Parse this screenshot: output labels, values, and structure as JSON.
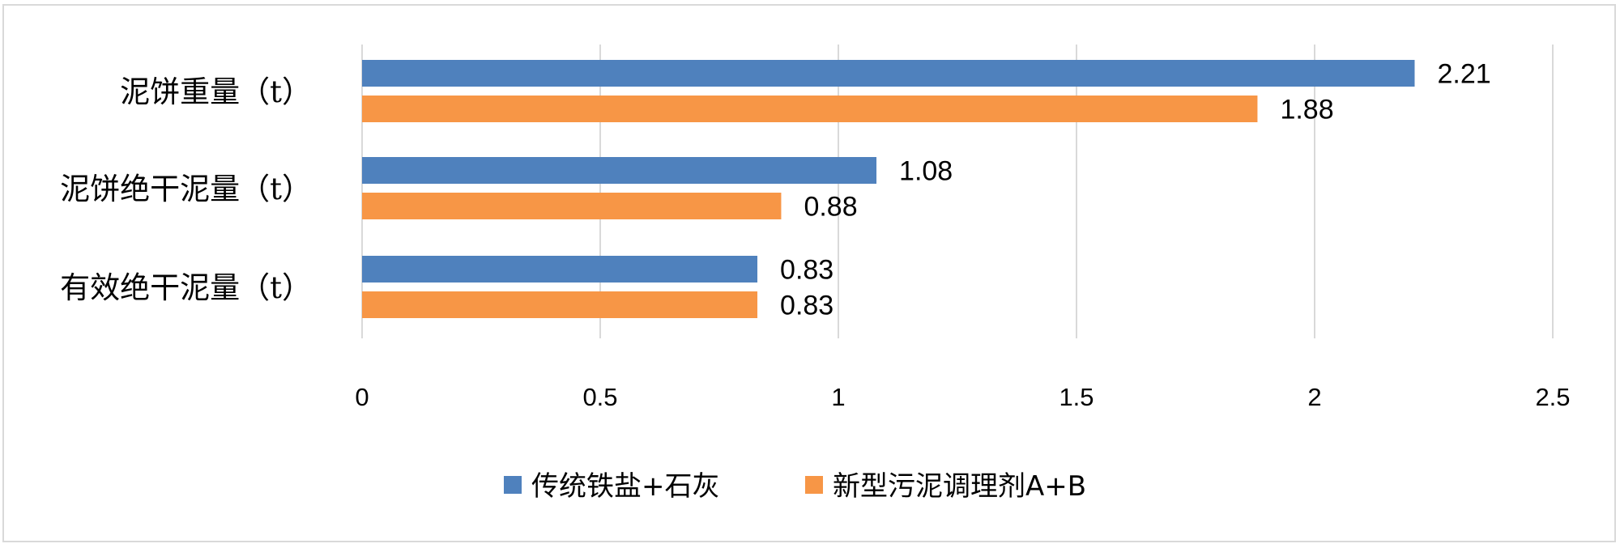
{
  "chart_data": {
    "type": "bar",
    "orientation": "horizontal",
    "categories": [
      "泥饼重量（t）",
      "泥饼绝干泥量（t）",
      "有效绝干泥量（t）"
    ],
    "series": [
      {
        "name": "传统铁盐+石灰",
        "color": "#4f81bd",
        "values": [
          2.21,
          1.08,
          0.83
        ],
        "labels": [
          "2.21",
          "1.08",
          "0.83"
        ]
      },
      {
        "name": "新型污泥调理剂A+B",
        "color": "#f79646",
        "values": [
          1.88,
          0.88,
          0.83
        ],
        "labels": [
          "1.88",
          "0.88",
          "0.83"
        ]
      }
    ],
    "xlim": [
      0,
      2.5
    ],
    "xticks": [
      "0",
      "0.5",
      "1",
      "1.5",
      "2",
      "2.5"
    ],
    "xtick_values": [
      0,
      0.5,
      1,
      1.5,
      2,
      2.5
    ],
    "grid": "vertical",
    "legend_position": "bottom"
  }
}
